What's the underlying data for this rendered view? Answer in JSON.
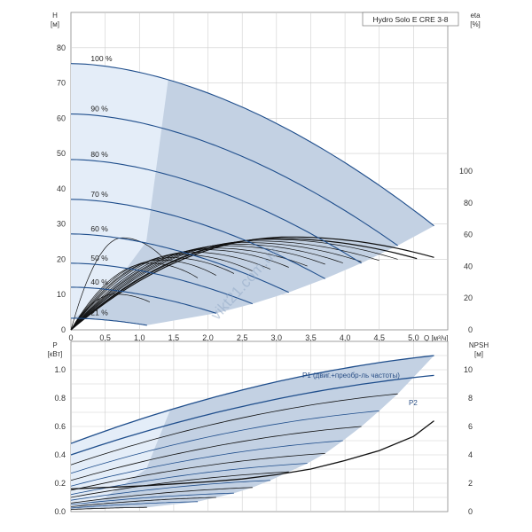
{
  "title": "Hydro Solo E CRE 3-8",
  "watermark": "vikt21.com.ua",
  "colors": {
    "curve": "#1f4e8c",
    "envelope": "#c3d1e3",
    "envelope_light": "#e4edf8",
    "grid": "#cfcfcf",
    "eff": "#111111"
  },
  "chart_data": [
    {
      "type": "line",
      "name": "head",
      "xlabel": "Q [м³/ч]",
      "ylabel": "H\n[м]",
      "ylabel_right": "eta\n[%]",
      "xlim": [
        0,
        5.5
      ],
      "ylim": [
        0,
        90
      ],
      "x_ticks": [
        "0",
        "0,5",
        "1,0",
        "1,5",
        "2,0",
        "2,5",
        "3,0",
        "3,5",
        "4,0",
        "4,5",
        "5,0"
      ],
      "x_tick_values": [
        0,
        0.5,
        1,
        1.5,
        2,
        2.5,
        3,
        3.5,
        4,
        4.5,
        5
      ],
      "y_ticks": [
        "0",
        "10",
        "20",
        "30",
        "40",
        "50",
        "60",
        "70",
        "80"
      ],
      "y_tick_values": [
        0,
        10,
        20,
        30,
        40,
        50,
        60,
        70,
        80
      ],
      "eta_ticks": [
        "0",
        "20",
        "40",
        "60",
        "80",
        "100"
      ],
      "eta_tick_values": [
        0,
        20,
        40,
        60,
        80,
        100
      ],
      "eta_range": [
        0,
        200
      ],
      "speed_curves": [
        {
          "label": "100 %",
          "speed": 1.0,
          "h0": 75.5,
          "qmax": 5.3,
          "hend": 29.5
        },
        {
          "label": "90 %",
          "speed": 0.9,
          "h0": 61.2,
          "qmax": 4.77,
          "hend": 23.9
        },
        {
          "label": "80 %",
          "speed": 0.8,
          "h0": 48.3,
          "qmax": 4.24,
          "hend": 18.9
        },
        {
          "label": "70 %",
          "speed": 0.7,
          "h0": 37.0,
          "qmax": 3.71,
          "hend": 14.5
        },
        {
          "label": "60 %",
          "speed": 0.6,
          "h0": 27.2,
          "qmax": 3.18,
          "hend": 10.6
        },
        {
          "label": "50 %",
          "speed": 0.5,
          "h0": 18.9,
          "qmax": 2.65,
          "hend": 7.4
        },
        {
          "label": "40 %",
          "speed": 0.4,
          "h0": 12.1,
          "qmax": 2.12,
          "hend": 4.7
        },
        {
          "label": "21 %",
          "speed": 0.21,
          "h0": 3.3,
          "qmax": 1.11,
          "hend": 1.3
        }
      ],
      "efficiency_curves": [
        {
          "qmax": 5.3,
          "peak": 58.5,
          "qpeak": 3.2
        },
        {
          "qmax": 5.05,
          "peak": 57.5,
          "qpeak": 3.0
        },
        {
          "qmax": 4.77,
          "peak": 57.0,
          "qpeak": 2.9
        },
        {
          "qmax": 4.5,
          "peak": 56.0,
          "qpeak": 2.7
        },
        {
          "qmax": 4.24,
          "peak": 55.0,
          "qpeak": 2.55
        },
        {
          "qmax": 3.97,
          "peak": 54.0,
          "qpeak": 2.4
        },
        {
          "qmax": 3.71,
          "peak": 53.0,
          "qpeak": 2.25
        },
        {
          "qmax": 3.45,
          "peak": 51.5,
          "qpeak": 2.1
        },
        {
          "qmax": 3.18,
          "peak": 50.5,
          "qpeak": 1.95
        },
        {
          "qmax": 2.91,
          "peak": 49.0,
          "qpeak": 1.75
        },
        {
          "qmax": 2.65,
          "peak": 47.5,
          "qpeak": 1.6
        },
        {
          "qmax": 2.38,
          "peak": 45.5,
          "qpeak": 1.45
        },
        {
          "qmax": 2.12,
          "peak": 44.0,
          "qpeak": 1.3
        },
        {
          "qmax": 1.85,
          "peak": 42.0,
          "qpeak": 1.15
        },
        {
          "qmax": 1.35,
          "peak": 58.0,
          "qpeak": 0.75
        },
        {
          "qmax": 1.15,
          "peak": 22.5,
          "qpeak": 0.65
        }
      ]
    },
    {
      "type": "line",
      "name": "power",
      "xlim": [
        0,
        5.5
      ],
      "ylim": [
        0,
        1.2
      ],
      "ylabel": "P\n[кВт]",
      "ylabel_right": "NPSH\n[м]",
      "y_ticks": [
        "0.0",
        "0.2",
        "0.4",
        "0.6",
        "0.8",
        "1.0"
      ],
      "y_tick_values": [
        0,
        0.2,
        0.4,
        0.6,
        0.8,
        1.0
      ],
      "npsh_ticks": [
        "0",
        "2",
        "4",
        "6",
        "8",
        "10"
      ],
      "npsh_tick_values": [
        0,
        2,
        4,
        6,
        8,
        10
      ],
      "npsh_range": [
        0,
        12
      ],
      "annotation_p1": "P1 (двиг.+преобр-ль частоты)",
      "annotation_p2": "P2",
      "power_curves": [
        {
          "p0": 0.48,
          "qmax": 5.3,
          "pend": 1.1
        },
        {
          "p0": 0.4,
          "qmax": 5.3,
          "pend": 0.96
        },
        {
          "p0": 0.33,
          "qmax": 4.77,
          "pend": 0.83
        },
        {
          "p0": 0.27,
          "qmax": 4.5,
          "pend": 0.71
        },
        {
          "p0": 0.22,
          "qmax": 4.24,
          "pend": 0.6
        },
        {
          "p0": 0.18,
          "qmax": 3.97,
          "pend": 0.5
        },
        {
          "p0": 0.15,
          "qmax": 3.71,
          "pend": 0.41
        },
        {
          "p0": 0.12,
          "qmax": 3.45,
          "pend": 0.34
        },
        {
          "p0": 0.1,
          "qmax": 3.18,
          "pend": 0.28
        },
        {
          "p0": 0.08,
          "qmax": 2.91,
          "pend": 0.22
        },
        {
          "p0": 0.06,
          "qmax": 2.65,
          "pend": 0.17
        },
        {
          "p0": 0.05,
          "qmax": 2.38,
          "pend": 0.13
        },
        {
          "p0": 0.035,
          "qmax": 2.12,
          "pend": 0.1
        },
        {
          "p0": 0.025,
          "qmax": 1.85,
          "pend": 0.07
        },
        {
          "p0": 0.015,
          "qmax": 1.11,
          "pend": 0.03
        }
      ],
      "npsh_curve": {
        "x": [
          0,
          0.5,
          1.0,
          1.5,
          2.0,
          2.5,
          3.0,
          3.5,
          4.0,
          4.5,
          5.0,
          5.3
        ],
        "y": [
          1.6,
          1.7,
          1.8,
          1.95,
          2.1,
          2.3,
          2.6,
          3.0,
          3.6,
          4.3,
          5.3,
          6.4
        ]
      }
    }
  ]
}
